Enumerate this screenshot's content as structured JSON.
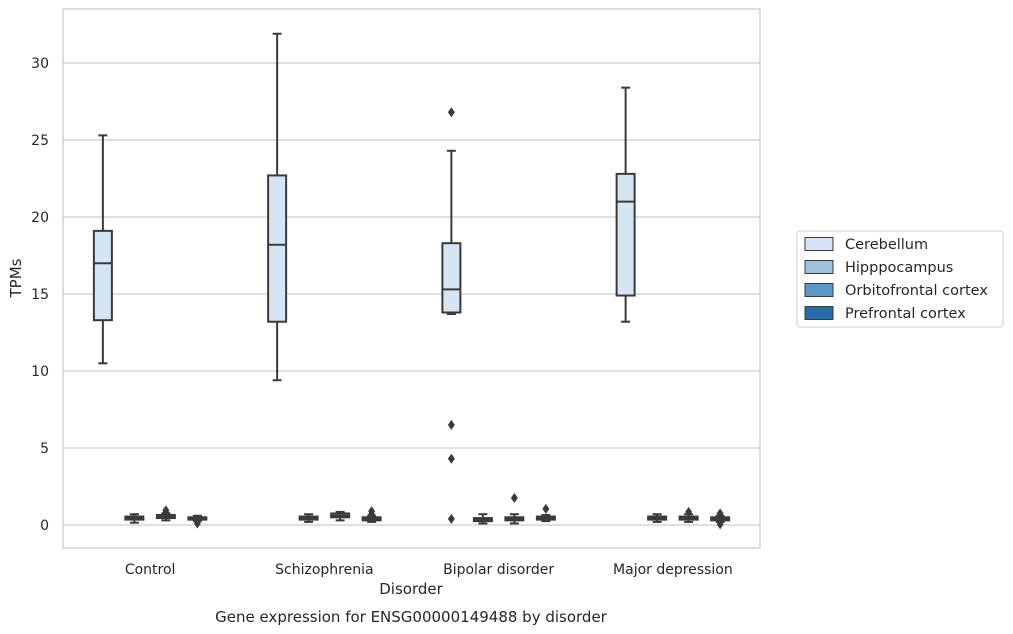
{
  "chart_data": {
    "type": "box",
    "title": "Gene expression for ENSG00000149488 by disorder",
    "xlabel": "Disorder",
    "ylabel": "TPMs",
    "ylim": [
      -1.5,
      33.5
    ],
    "yticks": [
      0,
      5,
      10,
      15,
      20,
      25,
      30
    ],
    "grid": "horizontal",
    "legend_position": "right",
    "categories": [
      "Control",
      "Schizophrenia",
      "Bipolar disorder",
      "Major depression"
    ],
    "series": [
      {
        "name": "Cerebellum",
        "color": "#d6e5f3",
        "boxes": [
          {
            "whislo": 10.5,
            "q1": 13.3,
            "med": 17.0,
            "q3": 19.1,
            "whishi": 25.3,
            "fliers": []
          },
          {
            "whislo": 9.4,
            "q1": 13.2,
            "med": 18.2,
            "q3": 22.7,
            "whishi": 31.9,
            "fliers": []
          },
          {
            "whislo": 13.7,
            "q1": 13.8,
            "med": 15.3,
            "q3": 18.3,
            "whishi": 24.3,
            "fliers": [
              26.8,
              6.5,
              4.3,
              0.4
            ]
          },
          {
            "whislo": 13.2,
            "q1": 14.9,
            "med": 21.0,
            "q3": 22.8,
            "whishi": 28.4,
            "fliers": []
          }
        ]
      },
      {
        "name": "Hipppocampus",
        "color": "#9dc3e0",
        "boxes": [
          {
            "whislo": 0.15,
            "q1": 0.35,
            "med": 0.45,
            "q3": 0.55,
            "whishi": 0.7,
            "fliers": []
          },
          {
            "whislo": 0.2,
            "q1": 0.35,
            "med": 0.45,
            "q3": 0.55,
            "whishi": 0.7,
            "fliers": []
          },
          {
            "whislo": 0.1,
            "q1": 0.25,
            "med": 0.35,
            "q3": 0.45,
            "whishi": 0.7,
            "fliers": []
          },
          {
            "whislo": 0.2,
            "q1": 0.35,
            "med": 0.45,
            "q3": 0.55,
            "whishi": 0.7,
            "fliers": []
          }
        ]
      },
      {
        "name": "Orbitofrontal cortex",
        "color": "#5b98c6",
        "boxes": [
          {
            "whislo": 0.3,
            "q1": 0.45,
            "med": 0.55,
            "q3": 0.65,
            "whishi": 0.75,
            "fliers": [
              0.95,
              0.8
            ]
          },
          {
            "whislo": 0.3,
            "q1": 0.5,
            "med": 0.6,
            "q3": 0.75,
            "whishi": 0.85,
            "fliers": []
          },
          {
            "whislo": 0.1,
            "q1": 0.3,
            "med": 0.4,
            "q3": 0.5,
            "whishi": 0.7,
            "fliers": [
              1.75
            ]
          },
          {
            "whislo": 0.2,
            "q1": 0.35,
            "med": 0.45,
            "q3": 0.55,
            "whishi": 0.7,
            "fliers": [
              0.85
            ]
          }
        ]
      },
      {
        "name": "Prefrontal cortex",
        "color": "#2a6aac",
        "boxes": [
          {
            "whislo": 0.25,
            "q1": 0.35,
            "med": 0.45,
            "q3": 0.5,
            "whishi": 0.6,
            "fliers": [
              0.1
            ]
          },
          {
            "whislo": 0.2,
            "q1": 0.3,
            "med": 0.4,
            "q3": 0.5,
            "whishi": 0.6,
            "fliers": [
              0.9,
              0.7
            ]
          },
          {
            "whislo": 0.25,
            "q1": 0.35,
            "med": 0.45,
            "q3": 0.55,
            "whishi": 0.65,
            "fliers": [
              1.05
            ]
          },
          {
            "whislo": 0.2,
            "q1": 0.3,
            "med": 0.4,
            "q3": 0.5,
            "whishi": 0.6,
            "fliers": [
              0.75,
              0.45,
              0.05
            ]
          }
        ]
      }
    ],
    "colors": {
      "line": "#3a3a3a",
      "grid": "#cccccc",
      "frame": "#cccccc",
      "text": "#262626"
    }
  }
}
